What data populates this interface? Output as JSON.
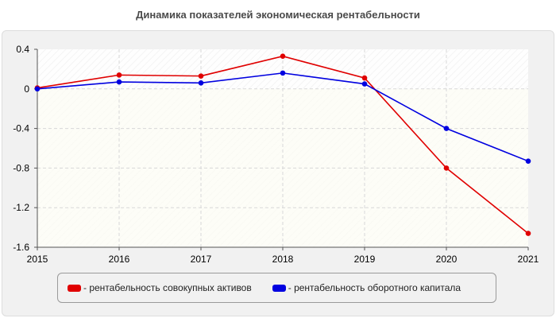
{
  "chart_data": {
    "type": "line",
    "title": "Динамика показателей экономическая рентабельности",
    "x": [
      "2015",
      "2016",
      "2017",
      "2018",
      "2019",
      "2020",
      "2021"
    ],
    "yticks": [
      "0.4",
      "0",
      "-0.4",
      "-0.8",
      "-1.2",
      "-1.6"
    ],
    "ylim": [
      -1.6,
      0.4
    ],
    "grid": true,
    "legend_position": "bottom",
    "series": [
      {
        "name": "- рентабельность совокупных активов",
        "color": "#e00000",
        "values": [
          0.01,
          0.14,
          0.13,
          0.33,
          0.11,
          -0.8,
          -1.46
        ]
      },
      {
        "name": "- рентабельность оборотного капитала",
        "color": "#0000e0",
        "values": [
          0.0,
          0.07,
          0.06,
          0.16,
          0.05,
          -0.4,
          -0.73
        ]
      }
    ]
  }
}
